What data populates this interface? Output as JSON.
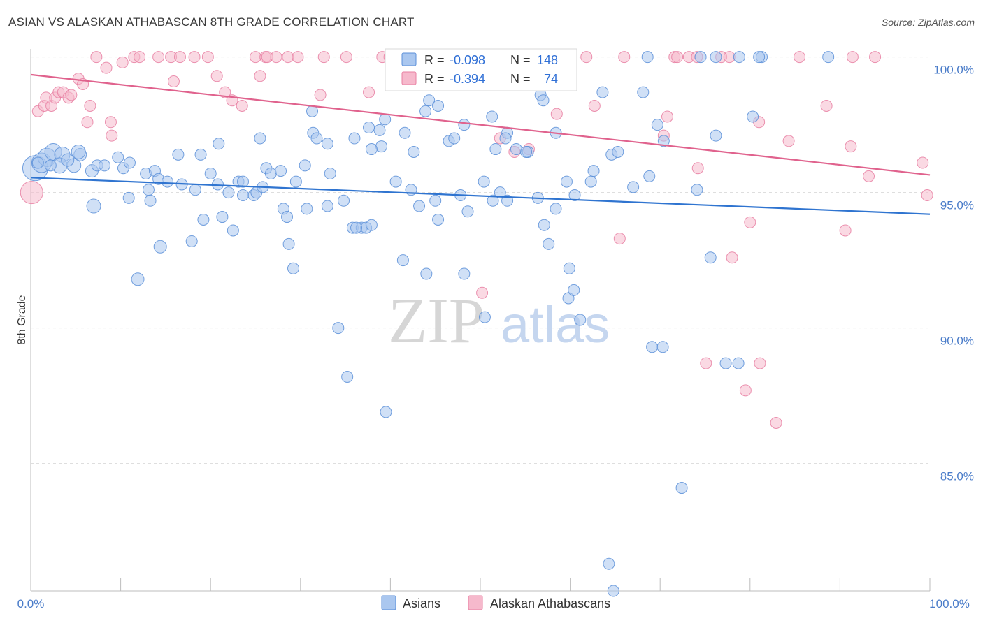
{
  "title": "ASIAN VS ALASKAN ATHABASCAN 8TH GRADE CORRELATION CHART",
  "source": "Source: ZipAtlas.com",
  "watermark": {
    "zip": "ZIP",
    "atlas": "atlas"
  },
  "colors": {
    "asian_fill": "#aac7ef",
    "asian_stroke": "#5b8fd8",
    "asian_line": "#2f74d0",
    "athabascan_fill": "#f6b9cc",
    "athabascan_stroke": "#e87fa2",
    "athabascan_line": "#e0628d",
    "value_text": "#2f6fd6",
    "grid": "#d9d9d9"
  },
  "stats_legend": [
    {
      "r_label": "R =",
      "r_value": "-0.098",
      "n_label": "N =",
      "n_value": "148"
    },
    {
      "r_label": "R =",
      "r_value": "-0.394",
      "n_label": "N =",
      "n_value": "74"
    }
  ],
  "chart_data": {
    "type": "scatter",
    "title": "ASIAN VS ALASKAN ATHABASCAN 8TH GRADE CORRELATION CHART",
    "xlabel": "",
    "ylabel": "8th Grade",
    "xlim": [
      0,
      100
    ],
    "ylim": [
      80.3,
      100.3
    ],
    "x_ticks": [
      "0.0%",
      "100.0%"
    ],
    "y_ticks": [
      {
        "value": 100,
        "label": "100.0%"
      },
      {
        "value": 95,
        "label": "95.0%"
      },
      {
        "value": 90,
        "label": "90.0%"
      },
      {
        "value": 85,
        "label": "85.0%"
      }
    ],
    "grid": true,
    "legend_position": "bottom-center",
    "series": [
      {
        "name": "Asians",
        "trend": {
          "x": [
            0,
            100
          ],
          "y": [
            95.55,
            94.2
          ]
        },
        "points": [
          [
            0.5,
            95.9,
            18
          ],
          [
            1.2,
            96.1,
            14
          ],
          [
            1.8,
            96.3,
            13
          ],
          [
            2.5,
            96.5,
            12
          ],
          [
            3.5,
            96.4,
            11
          ],
          [
            3.2,
            96.0,
            11
          ],
          [
            4.8,
            96.0,
            10
          ],
          [
            5.5,
            96.4,
            9
          ],
          [
            5.3,
            96.5,
            10
          ],
          [
            6.8,
            95.8,
            9
          ],
          [
            7.4,
            96.0,
            8
          ],
          [
            8.2,
            96.0,
            8
          ],
          [
            9.7,
            96.3,
            8
          ],
          [
            10.3,
            95.9,
            8
          ],
          [
            11.0,
            96.1,
            8
          ],
          [
            12.8,
            95.7,
            8
          ],
          [
            13.8,
            95.8,
            8
          ],
          [
            14.2,
            95.5,
            8
          ],
          [
            15.2,
            95.4,
            8
          ],
          [
            16.4,
            96.4,
            8
          ],
          [
            16.8,
            95.3,
            8
          ],
          [
            18.9,
            96.4,
            8
          ],
          [
            20.0,
            95.7,
            8
          ],
          [
            20.8,
            95.3,
            8
          ],
          [
            23.1,
            95.4,
            8
          ],
          [
            22.0,
            95.0,
            8
          ],
          [
            23.6,
            94.9,
            8
          ],
          [
            24.8,
            94.9,
            8
          ],
          [
            25.1,
            95.0,
            8
          ],
          [
            26.2,
            95.9,
            8
          ],
          [
            26.7,
            95.7,
            8
          ],
          [
            27.8,
            95.8,
            8
          ],
          [
            29.5,
            95.4,
            8
          ],
          [
            30.5,
            96.0,
            8
          ],
          [
            33.3,
            95.7,
            8
          ],
          [
            34.8,
            94.7,
            8
          ],
          [
            7.0,
            94.5,
            10
          ],
          [
            13.1,
            95.1,
            8
          ],
          [
            13.3,
            94.7,
            8
          ],
          [
            10.9,
            94.8,
            8
          ],
          [
            18.3,
            95.1,
            8
          ],
          [
            19.2,
            94.0,
            8
          ],
          [
            21.3,
            94.1,
            8
          ],
          [
            23.6,
            95.4,
            8
          ],
          [
            25.8,
            95.2,
            8
          ],
          [
            28.1,
            94.4,
            8
          ],
          [
            28.5,
            94.1,
            8
          ],
          [
            30.7,
            94.4,
            8
          ],
          [
            33.0,
            94.5,
            8
          ],
          [
            35.8,
            93.7,
            8
          ],
          [
            36.8,
            93.7,
            8
          ],
          [
            37.3,
            93.7,
            8
          ],
          [
            37.9,
            93.8,
            8
          ],
          [
            36.2,
            93.7,
            8
          ],
          [
            40.6,
            95.4,
            8
          ],
          [
            42.3,
            95.1,
            8
          ],
          [
            43.2,
            94.5,
            8
          ],
          [
            45.0,
            94.7,
            8
          ],
          [
            45.3,
            94.0,
            8
          ],
          [
            47.8,
            94.9,
            8
          ],
          [
            48.6,
            94.3,
            8
          ],
          [
            50.4,
            95.4,
            8
          ],
          [
            51.4,
            94.7,
            8
          ],
          [
            52.2,
            95.0,
            8
          ],
          [
            53.0,
            94.7,
            8
          ],
          [
            56.4,
            94.8,
            8
          ],
          [
            57.1,
            93.8,
            8
          ],
          [
            57.6,
            93.1,
            8
          ],
          [
            58.4,
            94.4,
            8
          ],
          [
            59.6,
            95.4,
            8
          ],
          [
            60.5,
            94.9,
            8
          ],
          [
            62.3,
            95.4,
            8
          ],
          [
            62.6,
            95.8,
            8
          ],
          [
            64.6,
            96.4,
            8
          ],
          [
            67.0,
            95.2,
            8
          ],
          [
            68.8,
            95.6,
            8
          ],
          [
            74.1,
            95.1,
            8
          ],
          [
            0.8,
            96.1,
            8
          ],
          [
            2.2,
            96.0,
            8
          ],
          [
            4.1,
            96.2,
            9
          ],
          [
            14.4,
            93.0,
            9
          ],
          [
            11.9,
            91.8,
            9
          ],
          [
            17.9,
            93.2,
            8
          ],
          [
            22.5,
            93.6,
            8
          ],
          [
            28.7,
            93.1,
            8
          ],
          [
            29.2,
            92.2,
            8
          ],
          [
            41.4,
            92.5,
            8
          ],
          [
            44.0,
            92.0,
            8
          ],
          [
            48.2,
            92.0,
            8
          ],
          [
            59.9,
            92.2,
            8
          ],
          [
            59.8,
            91.1,
            8
          ],
          [
            60.4,
            91.4,
            8
          ],
          [
            69.1,
            89.3,
            8
          ],
          [
            70.3,
            89.3,
            8
          ],
          [
            75.6,
            92.6,
            8
          ],
          [
            77.3,
            88.7,
            8
          ],
          [
            78.7,
            88.7,
            8
          ],
          [
            34.2,
            90.0,
            8
          ],
          [
            35.2,
            88.2,
            8
          ],
          [
            39.5,
            86.9,
            8
          ],
          [
            50.5,
            90.4,
            8
          ],
          [
            61.1,
            90.3,
            8
          ],
          [
            72.4,
            84.1,
            8
          ],
          [
            64.3,
            81.3,
            8
          ],
          [
            64.8,
            80.3,
            8
          ],
          [
            20.9,
            96.8,
            8
          ],
          [
            25.5,
            97.0,
            8
          ],
          [
            31.4,
            97.2,
            8
          ],
          [
            31.8,
            97.0,
            8
          ],
          [
            33.0,
            96.8,
            8
          ],
          [
            36.0,
            97.0,
            8
          ],
          [
            37.6,
            97.4,
            8
          ],
          [
            38.8,
            97.3,
            8
          ],
          [
            39.0,
            96.7,
            8
          ],
          [
            41.6,
            97.2,
            8
          ],
          [
            42.6,
            96.5,
            8
          ],
          [
            46.5,
            96.9,
            8
          ],
          [
            47.1,
            97.0,
            8
          ],
          [
            51.7,
            96.6,
            8
          ],
          [
            53.0,
            97.2,
            8
          ],
          [
            54.0,
            96.6,
            8
          ],
          [
            55.3,
            96.5,
            8
          ],
          [
            58.4,
            97.2,
            8
          ],
          [
            63.6,
            98.7,
            8
          ],
          [
            65.3,
            96.5,
            8
          ],
          [
            69.7,
            97.5,
            8
          ],
          [
            70.4,
            96.9,
            8
          ],
          [
            76.2,
            97.1,
            8
          ],
          [
            80.3,
            97.8,
            8
          ],
          [
            31.3,
            98.0,
            8
          ],
          [
            39.4,
            97.7,
            8
          ],
          [
            44.3,
            98.4,
            8
          ],
          [
            45.3,
            98.2,
            8
          ],
          [
            51.3,
            97.8,
            8
          ],
          [
            56.7,
            98.6,
            8
          ],
          [
            57.0,
            98.4,
            8
          ],
          [
            52.8,
            97.0,
            8
          ],
          [
            55.1,
            96.5,
            8
          ],
          [
            37.9,
            96.6,
            8
          ],
          [
            48.2,
            97.5,
            8
          ],
          [
            43.9,
            98.0,
            8
          ],
          [
            68.1,
            98.7,
            8
          ],
          [
            78.8,
            100.0,
            8
          ],
          [
            81.3,
            100.0,
            8
          ],
          [
            88.7,
            100.0,
            8
          ],
          [
            74.5,
            100.0,
            8
          ],
          [
            76.2,
            100.0,
            8
          ],
          [
            68.6,
            100.0,
            8
          ],
          [
            81.0,
            100.0,
            8
          ],
          [
            57.0,
            100.0,
            8
          ]
        ]
      },
      {
        "name": "Alaskan Athabascans",
        "trend": {
          "x": [
            0,
            100
          ],
          "y": [
            99.35,
            95.65
          ]
        },
        "points": [
          [
            0.1,
            95.0,
            16
          ],
          [
            0.8,
            98.0,
            8
          ],
          [
            1.5,
            98.2,
            8
          ],
          [
            1.7,
            98.5,
            8
          ],
          [
            2.3,
            98.2,
            8
          ],
          [
            2.7,
            98.5,
            8
          ],
          [
            3.1,
            98.7,
            8
          ],
          [
            3.6,
            98.7,
            8
          ],
          [
            4.2,
            98.5,
            8
          ],
          [
            4.5,
            98.6,
            8
          ],
          [
            5.3,
            99.2,
            8
          ],
          [
            5.8,
            99.0,
            8
          ],
          [
            6.3,
            97.6,
            8
          ],
          [
            6.6,
            98.2,
            8
          ],
          [
            7.3,
            100.0,
            8
          ],
          [
            8.4,
            99.6,
            8
          ],
          [
            8.9,
            97.6,
            8
          ],
          [
            9.0,
            97.1,
            8
          ],
          [
            10.2,
            99.8,
            8
          ],
          [
            11.5,
            100.0,
            8
          ],
          [
            12.1,
            100.0,
            8
          ],
          [
            14.2,
            100.0,
            8
          ],
          [
            15.6,
            100.0,
            8
          ],
          [
            15.9,
            99.1,
            8
          ],
          [
            16.6,
            100.0,
            8
          ],
          [
            18.2,
            100.0,
            8
          ],
          [
            19.7,
            100.0,
            8
          ],
          [
            20.7,
            99.3,
            8
          ],
          [
            21.6,
            98.7,
            8
          ],
          [
            22.4,
            98.4,
            8
          ],
          [
            23.5,
            98.2,
            8
          ],
          [
            25.0,
            100.0,
            8
          ],
          [
            25.5,
            99.3,
            8
          ],
          [
            26.1,
            100.0,
            8
          ],
          [
            26.3,
            100.0,
            8
          ],
          [
            27.3,
            100.0,
            8
          ],
          [
            28.6,
            100.0,
            8
          ],
          [
            29.7,
            100.0,
            8
          ],
          [
            32.2,
            98.6,
            8
          ],
          [
            37.6,
            98.7,
            8
          ],
          [
            39.1,
            100.0,
            8
          ],
          [
            39.9,
            100.0,
            8
          ],
          [
            41.8,
            100.0,
            8
          ],
          [
            52.2,
            97.0,
            8
          ],
          [
            53.8,
            96.5,
            8
          ],
          [
            55.4,
            96.6,
            8
          ],
          [
            58.5,
            97.9,
            8
          ],
          [
            61.8,
            100.0,
            8
          ],
          [
            62.7,
            98.2,
            8
          ],
          [
            66.0,
            100.0,
            8
          ],
          [
            70.4,
            97.1,
            8
          ],
          [
            70.8,
            97.8,
            8
          ],
          [
            71.6,
            100.0,
            8
          ],
          [
            71.9,
            100.0,
            8
          ],
          [
            73.2,
            100.0,
            8
          ],
          [
            74.1,
            100.0,
            8
          ],
          [
            74.2,
            95.9,
            8
          ],
          [
            76.8,
            100.0,
            8
          ],
          [
            77.7,
            100.0,
            8
          ],
          [
            84.3,
            96.9,
            8
          ],
          [
            88.5,
            98.2,
            8
          ],
          [
            91.4,
            100.0,
            8
          ],
          [
            91.2,
            96.7,
            8
          ],
          [
            93.2,
            95.6,
            8
          ],
          [
            93.9,
            100.0,
            8
          ],
          [
            99.2,
            96.1,
            8
          ],
          [
            99.7,
            94.9,
            8
          ],
          [
            32.6,
            100.0,
            8
          ],
          [
            35.1,
            100.0,
            8
          ],
          [
            47.6,
            100.0,
            8
          ],
          [
            81.0,
            97.6,
            8
          ],
          [
            85.5,
            100.0,
            8
          ],
          [
            90.6,
            93.6,
            8
          ],
          [
            80.0,
            93.9,
            8
          ],
          [
            78.0,
            92.6,
            8
          ],
          [
            65.5,
            93.3,
            8
          ],
          [
            50.2,
            91.3,
            8
          ],
          [
            75.1,
            88.7,
            8
          ],
          [
            79.5,
            87.7,
            8
          ],
          [
            81.1,
            88.7,
            8
          ],
          [
            82.9,
            86.5,
            8
          ]
        ]
      }
    ]
  },
  "legend_bottom": [
    {
      "label": "Asians"
    },
    {
      "label": "Alaskan Athabascans"
    }
  ]
}
